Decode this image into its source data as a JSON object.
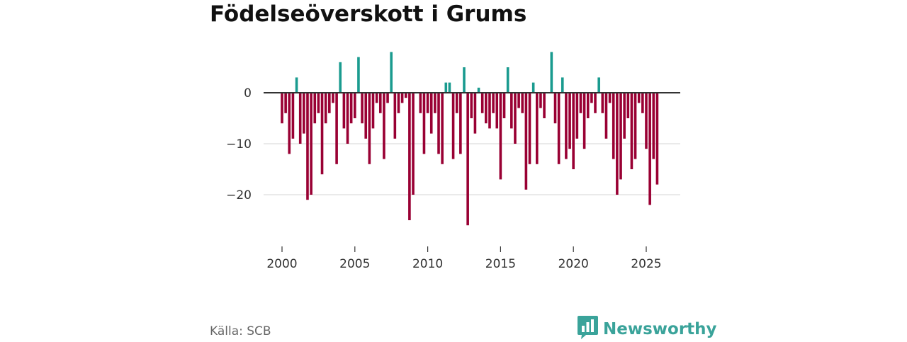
{
  "header": {
    "title": "Födelseöverskott i Grums"
  },
  "footer": {
    "source": "Källa: SCB",
    "brand": "Newsworthy"
  },
  "icons": {
    "brand_logo": "bar-chart-speech-bubble-icon"
  },
  "colors": {
    "positive": "#1a9b8f",
    "negative": "#990033",
    "brand": "#3aa39a",
    "zero_line": "#333333",
    "grid": "#dddddd"
  },
  "chart_data": {
    "type": "bar",
    "title": "Födelseöverskott i Grums",
    "xlabel": "",
    "ylabel": "",
    "ylim": [
      -28,
      9
    ],
    "xlim": [
      1998.75,
      2027.2
    ],
    "yticks": [
      0,
      -10,
      -20
    ],
    "ytick_labels": [
      "0",
      "−10",
      "−20"
    ],
    "xticks": [
      2000,
      2005,
      2010,
      2015,
      2020,
      2025
    ],
    "xtick_labels": [
      "2000",
      "2005",
      "2010",
      "2015",
      "2020",
      "2025"
    ],
    "grid": true,
    "bar_frequency": "quarterly",
    "x": [
      2000.0,
      2000.25,
      2000.5,
      2000.75,
      2001.0,
      2001.25,
      2001.5,
      2001.75,
      2002.0,
      2002.25,
      2002.5,
      2002.75,
      2003.0,
      2003.25,
      2003.5,
      2003.75,
      2004.0,
      2004.25,
      2004.5,
      2004.75,
      2005.0,
      2005.25,
      2005.5,
      2005.75,
      2006.0,
      2006.25,
      2006.5,
      2006.75,
      2007.0,
      2007.25,
      2007.5,
      2007.75,
      2008.0,
      2008.25,
      2008.5,
      2008.75,
      2009.0,
      2009.25,
      2009.5,
      2009.75,
      2010.0,
      2010.25,
      2010.5,
      2010.75,
      2011.0,
      2011.25,
      2011.5,
      2011.75,
      2012.0,
      2012.25,
      2012.5,
      2012.75,
      2013.0,
      2013.25,
      2013.5,
      2013.75,
      2014.0,
      2014.25,
      2014.5,
      2014.75,
      2015.0,
      2015.25,
      2015.5,
      2015.75,
      2016.0,
      2016.25,
      2016.5,
      2016.75,
      2017.0,
      2017.25,
      2017.5,
      2017.75,
      2018.0,
      2018.25,
      2018.5,
      2018.75,
      2019.0,
      2019.25,
      2019.5,
      2019.75,
      2020.0,
      2020.25,
      2020.5,
      2020.75,
      2021.0,
      2021.25,
      2021.5,
      2021.75,
      2022.0,
      2022.25,
      2022.5,
      2022.75,
      2023.0,
      2023.25,
      2023.5,
      2023.75,
      2024.0,
      2024.25,
      2024.5,
      2024.75,
      2025.0,
      2025.25,
      2025.5,
      2025.75
    ],
    "values": [
      -6,
      -4,
      -12,
      -9,
      3,
      -10,
      -8,
      -21,
      -20,
      -6,
      -4,
      -16,
      -6,
      -4,
      -2,
      -14,
      6,
      -7,
      -10,
      -6,
      -5,
      7,
      -6,
      -9,
      -14,
      -7,
      -2,
      -4,
      -13,
      -2,
      8,
      -9,
      -4,
      -2,
      -1,
      -25,
      -20,
      0,
      -4,
      -12,
      -4,
      -8,
      -4,
      -12,
      -14,
      2,
      2,
      -13,
      -4,
      -12,
      5,
      -26,
      -5,
      -8,
      1,
      -4,
      -6,
      -7,
      -4,
      -7,
      -17,
      -5,
      5,
      -7,
      -10,
      -3,
      -4,
      -19,
      -14,
      2,
      -14,
      -3,
      -5,
      0,
      8,
      -6,
      -14,
      3,
      -13,
      -11,
      -15,
      -9,
      -4,
      -11,
      -5,
      -2,
      -4,
      3,
      -4,
      -9,
      -2,
      -13,
      -20,
      -17,
      -9,
      -5,
      -15,
      -13,
      -2,
      -4,
      -11,
      -22,
      -13,
      -18
    ]
  }
}
